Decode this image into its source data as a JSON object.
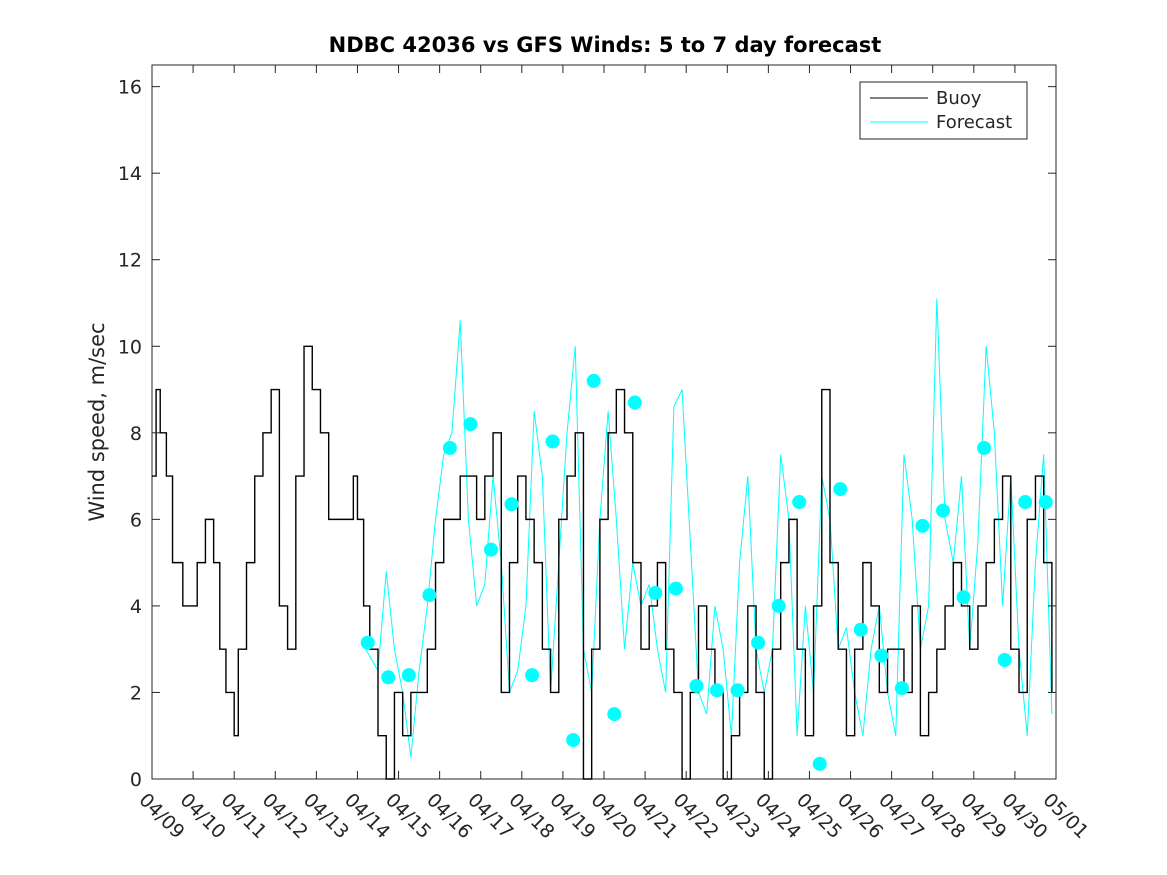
{
  "chart_data": {
    "type": "line",
    "title": "NDBC 42036 vs GFS Winds: 5 to 7 day forecast",
    "xlabel": "",
    "ylabel": "Wind speed, m/sec",
    "xlim": [
      "04/09",
      "05/01"
    ],
    "ylim": [
      0,
      16.5
    ],
    "yticks": [
      0,
      2,
      4,
      6,
      8,
      10,
      12,
      14,
      16
    ],
    "xtick_labels": [
      "04/09",
      "04/10",
      "04/11",
      "04/12",
      "04/13",
      "04/14",
      "04/15",
      "04/16",
      "04/17",
      "04/18",
      "04/19",
      "04/20",
      "04/21",
      "04/22",
      "04/23",
      "04/24",
      "04/25",
      "04/26",
      "04/27",
      "04/28",
      "04/29",
      "04/30",
      "05/01"
    ],
    "grid": false,
    "legend_position": "top-right",
    "colors": {
      "buoy": "#000000",
      "forecast": "#00ffff",
      "marker": "#00ffff"
    },
    "series": [
      {
        "name": "Buoy",
        "x_days_from_0409": [
          0,
          0.1,
          0.2,
          0.35,
          0.5,
          0.6,
          0.75,
          0.9,
          1.1,
          1.3,
          1.5,
          1.65,
          1.8,
          2,
          2.1,
          2.3,
          2.5,
          2.7,
          2.9,
          3.1,
          3.3,
          3.5,
          3.7,
          3.9,
          4.1,
          4.3,
          4.5,
          4.7,
          4.9,
          5,
          5.15,
          5.3,
          5.5,
          5.7,
          5.9,
          6.1,
          6.3,
          6.5,
          6.7,
          6.9,
          7.1,
          7.3,
          7.5,
          7.7,
          7.9,
          8.1,
          8.3,
          8.5,
          8.7,
          8.9,
          9.1,
          9.3,
          9.5,
          9.7,
          9.9,
          10.1,
          10.3,
          10.5,
          10.7,
          10.9,
          11.1,
          11.3,
          11.5,
          11.7,
          11.9,
          12.1,
          12.3,
          12.5,
          12.7,
          12.9,
          13.1,
          13.3,
          13.5,
          13.7,
          13.9,
          14.1,
          14.3,
          14.5,
          14.7,
          14.9,
          15.1,
          15.3,
          15.5,
          15.7,
          15.9,
          16.1,
          16.3,
          16.5,
          16.7,
          16.9,
          17.1,
          17.3,
          17.5,
          17.7,
          17.9,
          18.1,
          18.3,
          18.5,
          18.7,
          18.9,
          19.1,
          19.3,
          19.5,
          19.7,
          19.9,
          20.1,
          20.3,
          20.5,
          20.7,
          20.9,
          21.1,
          21.3,
          21.5,
          21.7,
          21.9
        ],
        "y": [
          7,
          9,
          8,
          7,
          5,
          5,
          4,
          4,
          5,
          6,
          5,
          3,
          2,
          1,
          3,
          5,
          7,
          8,
          9,
          4,
          3,
          7,
          10,
          9,
          8,
          6,
          6,
          6,
          7,
          6,
          4,
          3,
          1,
          0,
          2,
          1,
          2,
          2,
          3,
          5,
          6,
          6,
          7,
          7,
          6,
          7,
          8,
          2,
          5,
          7,
          6,
          5,
          3,
          2,
          6,
          7,
          8,
          0,
          3,
          6,
          8,
          9,
          8,
          5,
          3,
          4,
          5,
          3,
          2,
          0,
          2,
          4,
          3,
          2,
          0,
          1,
          2,
          4,
          2,
          0,
          3,
          5,
          6,
          3,
          1,
          4,
          9,
          5,
          3,
          1,
          3,
          5,
          4,
          2,
          3,
          3,
          2,
          4,
          1,
          2,
          3,
          4,
          5,
          4,
          3,
          4,
          5,
          6,
          7,
          3,
          2,
          6,
          7,
          5,
          2
        ]
      },
      {
        "name": "Forecast",
        "x_days_from_0409": [
          5.2,
          5.5,
          5.7,
          5.9,
          6.1,
          6.3,
          6.5,
          6.7,
          6.9,
          7.1,
          7.3,
          7.5,
          7.7,
          7.9,
          8.1,
          8.3,
          8.5,
          8.7,
          8.9,
          9.1,
          9.3,
          9.5,
          9.7,
          9.9,
          10.1,
          10.3,
          10.5,
          10.7,
          10.9,
          11.1,
          11.3,
          11.5,
          11.7,
          11.9,
          12.1,
          12.3,
          12.5,
          12.7,
          12.9,
          13.1,
          13.3,
          13.5,
          13.7,
          13.9,
          14.1,
          14.3,
          14.5,
          14.7,
          14.9,
          15.1,
          15.3,
          15.5,
          15.7,
          15.9,
          16.1,
          16.3,
          16.5,
          16.7,
          16.9,
          17.1,
          17.3,
          17.5,
          17.7,
          17.9,
          18.1,
          18.3,
          18.5,
          18.7,
          18.9,
          19.1,
          19.3,
          19.5,
          19.7,
          19.9,
          20.1,
          20.3,
          20.5,
          20.7,
          20.9,
          21.1,
          21.3,
          21.5,
          21.7,
          21.9
        ],
        "y": [
          3,
          2.5,
          4.8,
          3,
          2,
          0.5,
          2.5,
          4,
          6,
          7.5,
          8,
          10.6,
          6,
          4,
          4.5,
          7,
          5,
          2,
          2.5,
          4,
          8.5,
          7,
          2,
          5,
          8,
          10,
          3,
          2,
          6,
          8.5,
          6,
          3,
          5,
          4,
          4.5,
          3,
          2,
          8.6,
          9,
          5.5,
          2,
          1.5,
          4,
          3,
          1,
          5,
          7,
          3,
          2,
          3,
          7.5,
          6,
          1,
          4,
          2,
          7,
          6,
          3,
          3.5,
          2,
          1,
          3,
          4,
          2,
          1,
          7.5,
          6,
          3,
          4,
          11.1,
          6,
          5,
          7,
          3,
          5.5,
          10,
          8,
          4,
          7,
          3,
          1,
          5,
          7.5,
          1.5
        ]
      },
      {
        "name": "Forecast markers",
        "x_days_from_0409": [
          5.25,
          5.75,
          6.25,
          6.75,
          7.25,
          7.75,
          8.25,
          8.75,
          9.25,
          9.75,
          10.25,
          10.75,
          11.25,
          11.75,
          12.25,
          12.75,
          13.25,
          13.75,
          14.25,
          14.75,
          15.25,
          15.75,
          16.25,
          16.75,
          17.25,
          17.75,
          18.25,
          18.75,
          19.25,
          19.75,
          20.25,
          20.75,
          21.25,
          21.75
        ],
        "y": [
          3.15,
          2.35,
          2.4,
          4.25,
          7.65,
          8.2,
          5.3,
          6.35,
          2.4,
          7.8,
          0.9,
          9.2,
          1.5,
          8.7,
          4.3,
          4.4,
          2.15,
          2.05,
          2.05,
          3.15,
          4.0,
          6.4,
          0.35,
          6.7,
          3.45,
          2.85,
          2.1,
          5.85,
          6.2,
          4.2,
          7.65,
          2.75,
          6.4,
          6.4
        ]
      }
    ]
  }
}
